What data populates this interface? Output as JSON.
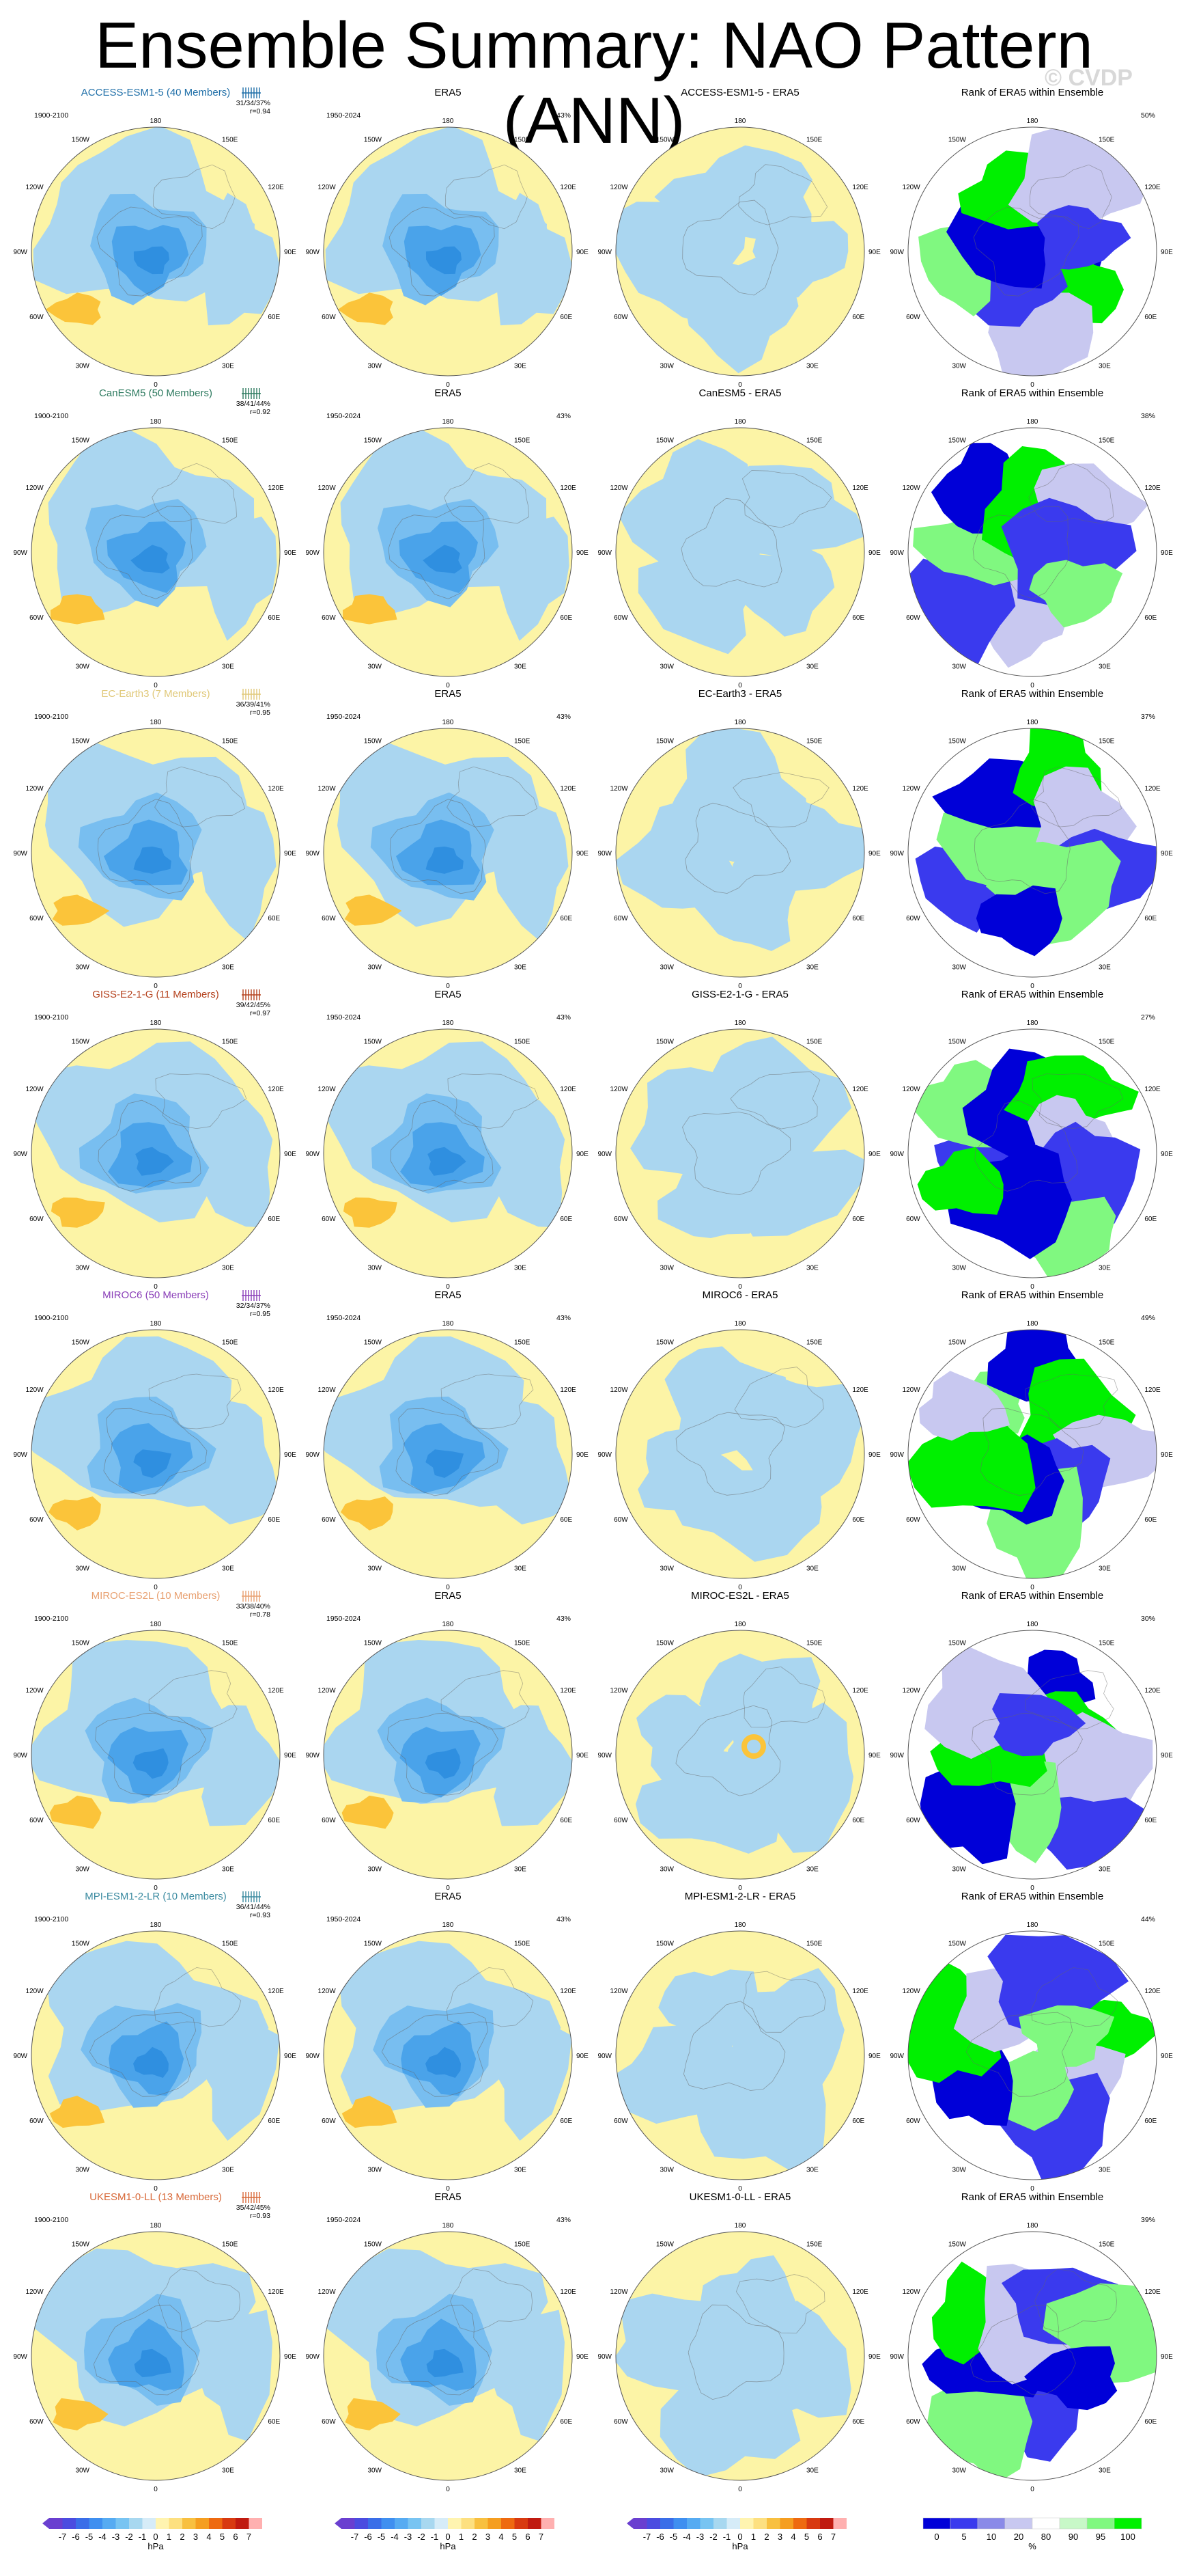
{
  "title": "Ensemble Summary: NAO Pattern (ANN)",
  "watermark": "© CVDP",
  "column_titles": {
    "obs": "ERA5",
    "rank": "Rank of ERA5 within Ensemble"
  },
  "model_period": "1900-2100",
  "obs_period": "1950-2024",
  "obs_pct": "43%",
  "lon_labels": {
    "top": "180",
    "bottom": "0",
    "tl": "150W",
    "tr": "150E",
    "ul": "120W",
    "ur": "120E",
    "ml": "90W",
    "mr": "90E",
    "ll": "60W",
    "lr": "60E",
    "bl": "30W",
    "br": "30E"
  },
  "rows": [
    {
      "model_title": "ACCESS-ESM1-5 (40 Members)",
      "title_color": "#1f6fa8",
      "stats": "31/34/37%",
      "r": "r=0.94",
      "diff_title": "ACCESS-ESM1-5 - ERA5",
      "rank_pct": "50%"
    },
    {
      "model_title": "CanESM5 (50 Members)",
      "title_color": "#2d7a5f",
      "stats": "38/41/44%",
      "r": "r=0.92",
      "diff_title": "CanESM5 - ERA5",
      "rank_pct": "38%"
    },
    {
      "model_title": "EC-Earth3 (7 Members)",
      "title_color": "#e0c878",
      "stats": "36/39/41%",
      "r": "r=0.95",
      "diff_title": "EC-Earth3 - ERA5",
      "rank_pct": "37%"
    },
    {
      "model_title": "GISS-E2-1-G (11 Members)",
      "title_color": "#b5431f",
      "stats": "39/42/45%",
      "r": "r=0.97",
      "diff_title": "GISS-E2-1-G - ERA5",
      "rank_pct": "27%"
    },
    {
      "model_title": "MIROC6 (50 Members)",
      "title_color": "#8a3fb8",
      "stats": "32/34/37%",
      "r": "r=0.95",
      "diff_title": "MIROC6 - ERA5",
      "rank_pct": "49%"
    },
    {
      "model_title": "MIROC-ES2L (10 Members)",
      "title_color": "#e8a070",
      "stats": "33/38/40%",
      "r": "r=0.78",
      "diff_title": "MIROC-ES2L - ERA5",
      "rank_pct": "30%"
    },
    {
      "model_title": "MPI-ESM1-2-LR (10 Members)",
      "title_color": "#3a8aa0",
      "stats": "36/41/44%",
      "r": "r=0.93",
      "diff_title": "MPI-ESM1-2-LR - ERA5",
      "rank_pct": "44%"
    },
    {
      "model_title": "UKESM1-0-LL (13 Members)",
      "title_color": "#d86a3a",
      "stats": "35/42/45%",
      "r": "r=0.93",
      "diff_title": "UKESM1-0-LL - ERA5",
      "rank_pct": "39%"
    }
  ],
  "colorbars": {
    "hpa_ticks": [
      "-7",
      "-6",
      "-5",
      "-4",
      "-3",
      "-2",
      "-1",
      "0",
      "1",
      "2",
      "3",
      "4",
      "5",
      "6",
      "7"
    ],
    "hpa_colors": [
      "#6a3fd0",
      "#4b4ce0",
      "#3a6ee8",
      "#3f8ff0",
      "#56abf2",
      "#78c4f2",
      "#a8d8f0",
      "#d6ecf8",
      "#fff4b0",
      "#fde080",
      "#f8c040",
      "#f59e20",
      "#ee6a10",
      "#d83a10",
      "#c01a10",
      "#ffb0b0"
    ],
    "hpa_label": "hPa",
    "pct_ticks": [
      "0",
      "5",
      "10",
      "20",
      "80",
      "90",
      "95",
      "100"
    ],
    "pct_colors": [
      "#0000d8",
      "#3a3aee",
      "#8a8ae8",
      "#c8c8f0",
      "#ffffff",
      "#c8f8c8",
      "#80f880",
      "#00f000"
    ],
    "pct_label": "%"
  }
}
